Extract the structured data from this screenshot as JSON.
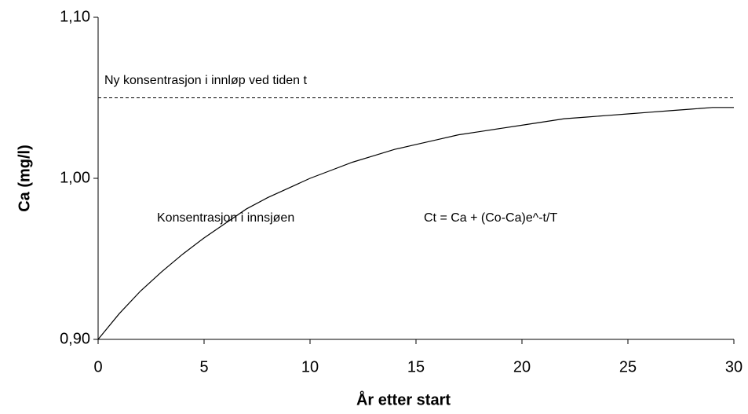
{
  "chart_data": {
    "type": "line",
    "x_label": "År etter start",
    "y_label": "Ca (mg/l)",
    "x": [
      0,
      1,
      2,
      3,
      4,
      5,
      6,
      7,
      8,
      9,
      10,
      11,
      12,
      13,
      14,
      15,
      16,
      17,
      18,
      19,
      20,
      21,
      22,
      23,
      24,
      25,
      26,
      27,
      28,
      29,
      30
    ],
    "series": [
      {
        "color": "#000000",
        "values": [
          0.9,
          0.916,
          0.93,
          0.942,
          0.953,
          0.963,
          0.972,
          0.981,
          0.988,
          0.994,
          1.0,
          1.005,
          1.01,
          1.014,
          1.018,
          1.021,
          1.024,
          1.027,
          1.029,
          1.031,
          1.033,
          1.035,
          1.037,
          1.038,
          1.039,
          1.04,
          1.041,
          1.042,
          1.043,
          1.044,
          1.044
        ]
      }
    ],
    "reference_line": {
      "value": 1.05,
      "label": "Ny konsentrasjon i innløp ved tiden t",
      "style": "dashed"
    },
    "annotations": [
      "Konsentrasjon i innsjøen",
      "Ct = Ca + (Co-Ca)e^-t/T"
    ],
    "xlim": [
      0,
      30
    ],
    "xticks": [
      0,
      5,
      10,
      15,
      20,
      25,
      30
    ],
    "ylim": [
      0.9,
      1.1
    ],
    "yticks": [
      {
        "value": 0.9,
        "label": "0,90"
      },
      {
        "value": 1.0,
        "label": "1,00"
      },
      {
        "value": 1.1,
        "label": "1,10"
      }
    ]
  }
}
